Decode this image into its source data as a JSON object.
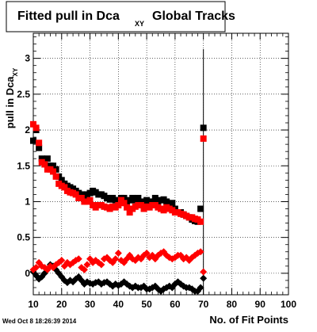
{
  "title": {
    "main": "Fitted pull in Dca",
    "sub": "XY",
    "rest": "Global Tracks"
  },
  "footer_timestamp": "Wed Oct  8 18:26:39 2014",
  "colors": {
    "series_black": "#000000",
    "series_red": "#ff0000",
    "grid": "#000000"
  },
  "chart_data": {
    "type": "scatter",
    "title": "Fitted pull in Dca XY Global Tracks",
    "xlabel": "No. of Fit Points",
    "ylabel": "pull in Dca XY",
    "xlim": [
      10,
      100
    ],
    "ylim": [
      -0.3,
      3.35
    ],
    "x_ticks": [
      "10",
      "20",
      "30",
      "40",
      "50",
      "60",
      "70",
      "80",
      "90",
      "100"
    ],
    "y_ticks": [
      "0",
      "0.5",
      "1",
      "1.5",
      "2",
      "2.5",
      "3"
    ],
    "y_tick_values": [
      0,
      0.5,
      1,
      1.5,
      2,
      2.5,
      3
    ],
    "grid": true,
    "series": [
      {
        "marker": "square",
        "color": "#000000",
        "x": [
          10,
          11,
          12,
          13,
          14,
          15,
          16,
          17,
          18,
          19,
          20,
          21,
          22,
          23,
          24,
          25,
          26,
          27,
          28,
          29,
          30,
          31,
          32,
          33,
          34,
          35,
          36,
          37,
          38,
          39,
          40,
          41,
          42,
          43,
          44,
          45,
          46,
          47,
          48,
          49,
          50,
          51,
          52,
          53,
          54,
          55,
          56,
          57,
          58,
          59,
          60,
          61,
          62,
          63,
          64,
          65,
          66,
          67,
          68,
          69,
          70
        ],
        "y": [
          1.85,
          2.0,
          1.75,
          1.6,
          1.55,
          1.6,
          1.5,
          1.5,
          1.45,
          1.35,
          1.3,
          1.25,
          1.22,
          1.2,
          1.18,
          1.15,
          1.12,
          1.1,
          1.08,
          1.1,
          1.12,
          1.15,
          1.13,
          1.1,
          1.1,
          1.08,
          1.05,
          1.03,
          1.05,
          1.02,
          1.02,
          1.05,
          1.05,
          1.0,
          1.02,
          1.05,
          1.02,
          1.05,
          1.0,
          1.0,
          1.02,
          1.0,
          1.0,
          1.05,
          1.0,
          1.02,
          1.03,
          1.0,
          0.95,
          0.98,
          0.9,
          0.85,
          0.85,
          0.82,
          0.8,
          0.78,
          0.75,
          0.73,
          0.72,
          0.9,
          2.03
        ]
      },
      {
        "marker": "square",
        "color": "#ff0000",
        "x": [
          10,
          11,
          12,
          13,
          14,
          15,
          16,
          17,
          18,
          19,
          20,
          21,
          22,
          23,
          24,
          25,
          26,
          27,
          28,
          29,
          30,
          31,
          32,
          33,
          34,
          35,
          36,
          37,
          38,
          39,
          40,
          41,
          42,
          43,
          44,
          45,
          46,
          47,
          48,
          49,
          50,
          51,
          52,
          53,
          54,
          55,
          56,
          57,
          58,
          59,
          60,
          61,
          62,
          63,
          64,
          65,
          66,
          67,
          68,
          69,
          70
        ],
        "y": [
          2.08,
          2.03,
          1.82,
          1.55,
          1.52,
          1.45,
          1.45,
          1.42,
          1.35,
          1.25,
          1.22,
          1.2,
          1.15,
          1.13,
          1.12,
          1.1,
          1.05,
          1.05,
          1.0,
          1.0,
          1.02,
          0.95,
          0.92,
          0.95,
          0.95,
          0.93,
          0.92,
          0.9,
          0.93,
          0.92,
          0.95,
          1.02,
          0.98,
          0.92,
          0.85,
          0.9,
          0.93,
          0.95,
          0.95,
          0.9,
          0.93,
          0.92,
          0.95,
          0.95,
          0.92,
          0.9,
          0.88,
          0.92,
          0.9,
          0.88,
          0.85,
          0.85,
          0.83,
          0.82,
          0.8,
          0.78,
          0.78,
          0.76,
          0.75,
          0.72,
          1.88
        ]
      },
      {
        "marker": "diamond",
        "color": "#000000",
        "x": [
          10,
          11,
          12,
          13,
          14,
          15,
          16,
          17,
          18,
          19,
          20,
          21,
          22,
          23,
          24,
          25,
          26,
          27,
          28,
          29,
          30,
          31,
          32,
          33,
          34,
          35,
          36,
          37,
          38,
          39,
          40,
          41,
          42,
          43,
          44,
          45,
          46,
          47,
          48,
          49,
          50,
          51,
          52,
          53,
          54,
          55,
          56,
          57,
          58,
          59,
          60,
          61,
          62,
          63,
          64,
          65,
          66,
          67,
          68,
          69,
          70
        ],
        "y": [
          0.02,
          -0.03,
          -0.08,
          -0.05,
          0.0,
          0.05,
          0.12,
          0.1,
          0.05,
          0.0,
          -0.05,
          -0.1,
          -0.13,
          -0.1,
          -0.12,
          -0.08,
          -0.05,
          -0.1,
          -0.15,
          -0.12,
          -0.14,
          -0.15,
          -0.13,
          -0.12,
          -0.15,
          -0.13,
          -0.12,
          -0.15,
          -0.18,
          -0.15,
          -0.17,
          -0.15,
          -0.12,
          -0.15,
          -0.18,
          -0.2,
          -0.18,
          -0.2,
          -0.2,
          -0.18,
          -0.22,
          -0.22,
          -0.2,
          -0.18,
          -0.22,
          -0.25,
          -0.22,
          -0.2,
          -0.18,
          -0.2,
          -0.15,
          -0.12,
          -0.15,
          -0.18,
          -0.2,
          -0.2,
          -0.22,
          -0.25,
          -0.25,
          -0.2,
          -0.07
        ]
      },
      {
        "marker": "diamond",
        "color": "#ff0000",
        "x": [
          10,
          11,
          12,
          13,
          14,
          15,
          16,
          17,
          18,
          19,
          20,
          21,
          22,
          23,
          24,
          25,
          26,
          27,
          28,
          29,
          30,
          31,
          32,
          33,
          34,
          35,
          36,
          37,
          38,
          39,
          40,
          41,
          42,
          43,
          44,
          45,
          46,
          47,
          48,
          49,
          50,
          51,
          52,
          53,
          54,
          55,
          56,
          57,
          58,
          59,
          60,
          61,
          62,
          63,
          64,
          65,
          66,
          67,
          68,
          69,
          70
        ],
        "y": [
          0.05,
          0.08,
          0.15,
          0.1,
          0.08,
          0.05,
          0.1,
          0.08,
          0.12,
          0.15,
          0.18,
          0.1,
          0.15,
          0.12,
          0.15,
          0.18,
          0.2,
          0.08,
          0.05,
          0.12,
          0.2,
          0.15,
          0.18,
          0.15,
          0.12,
          0.2,
          0.22,
          0.18,
          0.15,
          0.2,
          0.28,
          0.18,
          0.15,
          0.2,
          0.25,
          0.2,
          0.18,
          0.22,
          0.2,
          0.25,
          0.28,
          0.22,
          0.25,
          0.2,
          0.25,
          0.28,
          0.3,
          0.25,
          0.22,
          0.2,
          0.22,
          0.25,
          0.25,
          0.2,
          0.22,
          0.18,
          0.22,
          0.25,
          0.28,
          0.3,
          0.02
        ]
      }
    ]
  }
}
